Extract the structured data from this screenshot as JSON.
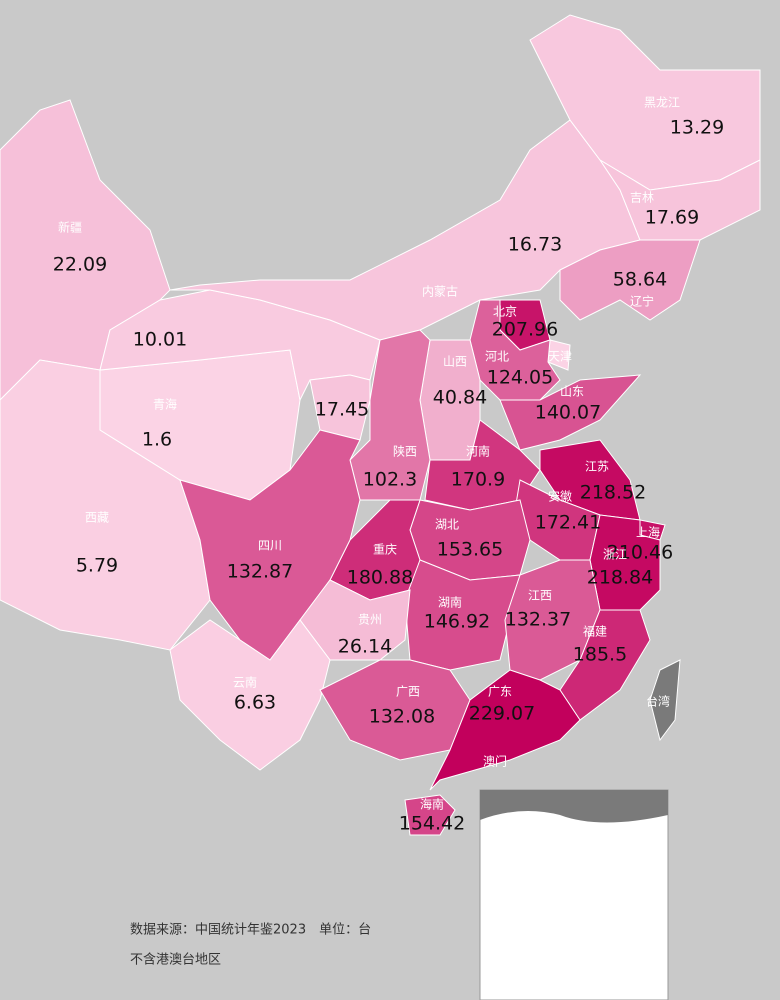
{
  "map": {
    "color_scale": [
      "#fbd3e5",
      "#c2005c"
    ],
    "regions": [
      {
        "name": "新疆",
        "value": 22.09
      },
      {
        "name": "西藏",
        "value": 5.79
      },
      {
        "name": "青海",
        "value": 1.6
      },
      {
        "name": null,
        "value": 10.01
      },
      {
        "name": null,
        "value": 17.45
      },
      {
        "name": "内蒙古",
        "value": 16.73
      },
      {
        "name": "黑龙江",
        "value": 13.29
      },
      {
        "name": "吉林",
        "value": 17.69
      },
      {
        "name": "辽宁",
        "value": 58.64
      },
      {
        "name": "北京",
        "value": 207.96
      },
      {
        "name": "天津",
        "value": null
      },
      {
        "name": "河北",
        "value": 124.05
      },
      {
        "name": "山西",
        "value": 40.84
      },
      {
        "name": "山东",
        "value": 140.07
      },
      {
        "name": "陕西",
        "value": 102.3
      },
      {
        "name": "河南",
        "value": 170.9
      },
      {
        "name": "江苏",
        "value": 218.52
      },
      {
        "name": "安徽",
        "value": 172.41
      },
      {
        "name": "上海",
        "value": 210.46
      },
      {
        "name": "湖北",
        "value": 153.65
      },
      {
        "name": "重庆",
        "value": 180.88
      },
      {
        "name": "四川",
        "value": 132.87
      },
      {
        "name": "浙江",
        "value": 218.84
      },
      {
        "name": "湖南",
        "value": 146.92
      },
      {
        "name": "江西",
        "value": 132.37
      },
      {
        "name": "福建",
        "value": 185.5
      },
      {
        "name": "贵州",
        "value": 26.14
      },
      {
        "name": "云南",
        "value": 6.63
      },
      {
        "name": "广西",
        "value": 132.08
      },
      {
        "name": "广东",
        "value": 229.07
      },
      {
        "name": "澳门",
        "value": null
      },
      {
        "name": "海南",
        "value": 154.42
      },
      {
        "name": "台湾",
        "value": null
      }
    ]
  },
  "notes": [
    "数据来源：中国统计年鉴2023　单位：台",
    "不含港澳台地区"
  ]
}
